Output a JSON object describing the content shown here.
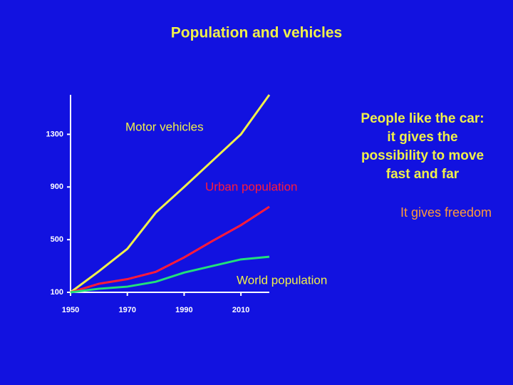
{
  "chart_data": {
    "type": "line",
    "title": "Population and vehicles",
    "x": [
      1950,
      1960,
      1970,
      1980,
      1990,
      2000,
      2010,
      2020
    ],
    "xlim": [
      1950,
      2020
    ],
    "xticks": [
      1950,
      1970,
      1990,
      2010
    ],
    "ylim": [
      100,
      1600
    ],
    "yticks": [
      100,
      500,
      900,
      1300
    ],
    "series": [
      {
        "name": "Motor vehicles",
        "color": "#f0f04a",
        "label_color": "#f0f04a",
        "values": [
          100,
          260,
          430,
          705,
          900,
          1100,
          1300,
          1600
        ]
      },
      {
        "name": "Urban population",
        "color": "#ff1a3a",
        "label_color": "#ff1a3a",
        "values": [
          100,
          165,
          200,
          255,
          365,
          490,
          610,
          750
        ]
      },
      {
        "name": "World population",
        "color": "#22e07a",
        "label_color": "#f0f04a",
        "values": [
          100,
          127,
          143,
          180,
          250,
          300,
          350,
          370
        ]
      }
    ],
    "annotations": {
      "message_lines": [
        "People like the car:",
        "it gives the",
        "possibility to move",
        "fast and far"
      ],
      "conclusion": "It gives freedom"
    }
  }
}
